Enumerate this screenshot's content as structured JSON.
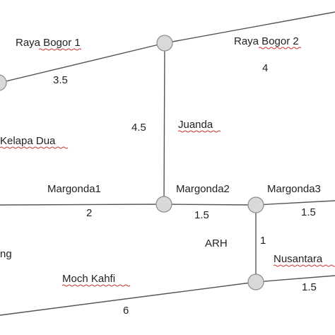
{
  "road_labels": {
    "raya_bogor_1": "Raya Bogor 1",
    "raya_bogor_2": "Raya Bogor 2",
    "juanda": "Juanda",
    "kelapa_dua": "Kelapa Dua",
    "margonda1": "Margonda1",
    "margonda2": "Margonda2",
    "margonda3": "Margonda3",
    "arh": "ARH",
    "nusantara": "Nusantara",
    "moch_kahfi": "Moch Kahfi",
    "ng": "ng"
  },
  "weights": {
    "raya_bogor_1": "3.5",
    "raya_bogor_2": "4",
    "juanda": "4.5",
    "margonda1": "2",
    "margonda2": "1.5",
    "margonda3": "1.5",
    "arh": "1",
    "nusantara": "1.5",
    "moch_kahfi": "6"
  },
  "colors": {
    "node_fill": "#d9d9d9",
    "node_stroke": "#8c8c8c",
    "edge": "#555555",
    "spellcheck": "#cc3333"
  }
}
